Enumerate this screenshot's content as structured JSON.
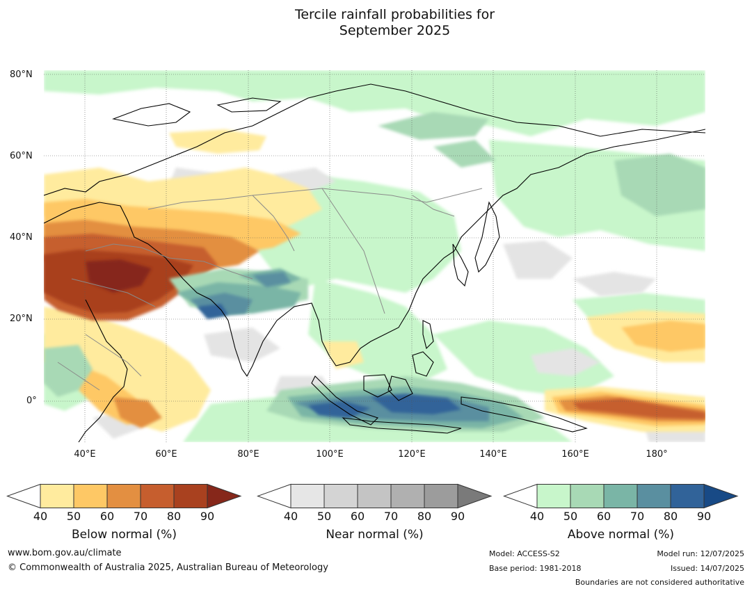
{
  "title": {
    "line1": "Tercile rainfall probabilities for",
    "line2": "September 2025"
  },
  "map": {
    "lat_labels": [
      "80°N",
      "60°N",
      "40°N",
      "20°N",
      "0°"
    ],
    "lon_labels": [
      "40°E",
      "60°E",
      "80°E",
      "100°E",
      "120°E",
      "140°E",
      "160°E",
      "180°"
    ],
    "lon_range": [
      30,
      192
    ],
    "lat_range": [
      -10,
      81
    ]
  },
  "colorbars": [
    {
      "title": "Below normal (%)",
      "ticks": [
        "40",
        "50",
        "60",
        "70",
        "80",
        "90"
      ],
      "colors": [
        "#ffeb9e",
        "#fec865",
        "#e38f41",
        "#c65e2e",
        "#a9411f",
        "#86271a"
      ]
    },
    {
      "title": "Near normal (%)",
      "ticks": [
        "40",
        "50",
        "60",
        "70",
        "80",
        "90"
      ],
      "colors": [
        "#e6e6e6",
        "#d4d4d4",
        "#c4c4c4",
        "#b0b0b0",
        "#9c9c9c",
        "#7a7a7a"
      ]
    },
    {
      "title": "Above normal (%)",
      "ticks": [
        "40",
        "50",
        "60",
        "70",
        "80",
        "90"
      ],
      "colors": [
        "#c8f6cb",
        "#a8d9b5",
        "#7ab5a6",
        "#5a8fa0",
        "#316399",
        "#184a86"
      ]
    }
  ],
  "footer": {
    "url": "www.bom.gov.au/climate",
    "copyright": "© Commonwealth of Australia 2025, Australian Bureau of Meteorology",
    "model": "Model: ACCESS-S2",
    "base_period": "Base period: 1981-2018",
    "model_run": "Model run: 12/07/2025",
    "issued": "Issued: 14/07/2025",
    "boundaries": "Boundaries are not considered authoritative"
  }
}
